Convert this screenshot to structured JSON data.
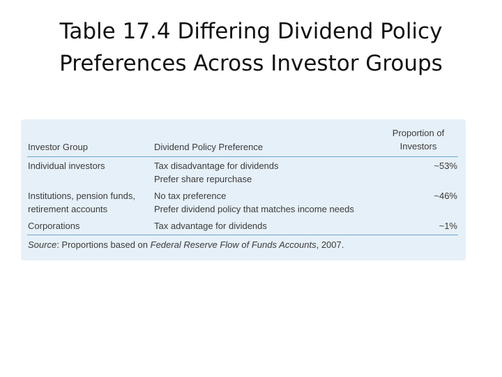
{
  "title": {
    "line1": "Table 17.4  Differing Dividend Policy",
    "line2": "Preferences Across Investor Groups"
  },
  "table": {
    "headers": {
      "group": "Investor Group",
      "preference": "Dividend Policy Preference",
      "proportion_line1": "Proportion of",
      "proportion_line2": "Investors"
    },
    "rows": [
      {
        "group": [
          "Individual investors"
        ],
        "preference": [
          "Tax disadvantage for dividends",
          "Prefer share repurchase"
        ],
        "proportion": "~53%"
      },
      {
        "group": [
          "Institutions, pension funds,",
          "retirement accounts"
        ],
        "preference": [
          "No tax preference",
          "Prefer dividend policy that matches income needs"
        ],
        "proportion": "~46%"
      },
      {
        "group": [
          "Corporations"
        ],
        "preference": [
          "Tax advantage for dividends"
        ],
        "proportion": "~1%"
      }
    ],
    "source": {
      "label": "Source",
      "text_before": ": Proportions based on ",
      "publication": "Federal Reserve Flow of Funds Accounts",
      "text_after": ", 2007."
    }
  }
}
